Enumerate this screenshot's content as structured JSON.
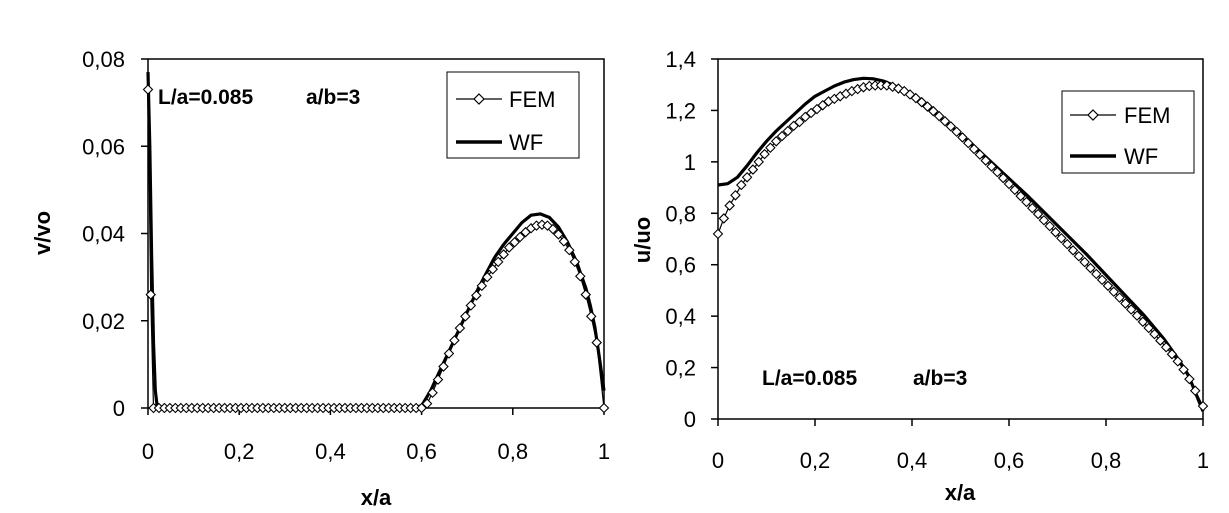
{
  "chart_data": [
    {
      "type": "line",
      "xlabel": "x/a",
      "ylabel": "v/vo",
      "xlim": [
        0,
        1
      ],
      "ylim": [
        0,
        0.08
      ],
      "xticks": [
        "0",
        "0,2",
        "0,4",
        "0,6",
        "0,8",
        "1"
      ],
      "yticks": [
        "0",
        "0,02",
        "0,04",
        "0,06",
        "0,08"
      ],
      "annotation": {
        "text_a": "L/a=0.085",
        "text_b": "a/b=3",
        "placement": "top-left"
      },
      "grid": false,
      "legend": "top-right",
      "series": [
        {
          "name": "FEM",
          "style": "line-diamond-markers",
          "x": [
            0.0,
            0.006,
            0.012,
            0.024,
            0.036,
            0.048,
            0.06,
            0.072,
            0.084,
            0.096,
            0.108,
            0.12,
            0.132,
            0.144,
            0.156,
            0.168,
            0.18,
            0.192,
            0.204,
            0.216,
            0.228,
            0.24,
            0.252,
            0.264,
            0.276,
            0.288,
            0.3,
            0.312,
            0.324,
            0.336,
            0.348,
            0.36,
            0.372,
            0.384,
            0.396,
            0.408,
            0.42,
            0.432,
            0.444,
            0.456,
            0.468,
            0.48,
            0.492,
            0.504,
            0.516,
            0.528,
            0.54,
            0.552,
            0.564,
            0.576,
            0.588,
            0.6,
            0.612,
            0.624,
            0.636,
            0.648,
            0.66,
            0.672,
            0.684,
            0.696,
            0.708,
            0.72,
            0.732,
            0.744,
            0.756,
            0.768,
            0.78,
            0.792,
            0.804,
            0.816,
            0.828,
            0.84,
            0.852,
            0.864,
            0.876,
            0.888,
            0.9,
            0.912,
            0.924,
            0.936,
            0.948,
            0.96,
            0.972,
            0.984,
            1.0
          ],
          "y": [
            0.073,
            0.026,
            0.0,
            0.0,
            0.0,
            0.0,
            0.0,
            0.0,
            0.0,
            0.0,
            0.0,
            0.0,
            0.0,
            0.0,
            0.0,
            0.0,
            0.0,
            0.0,
            0.0,
            0.0,
            0.0,
            0.0,
            0.0,
            0.0,
            0.0,
            0.0,
            0.0,
            0.0,
            0.0,
            0.0,
            0.0,
            0.0,
            0.0,
            0.0,
            0.0,
            0.0,
            0.0,
            0.0,
            0.0,
            0.0,
            0.0,
            0.0,
            0.0,
            0.0,
            0.0,
            0.0,
            0.0,
            0.0,
            0.0,
            0.0,
            0.0,
            0.0,
            0.001,
            0.0035,
            0.0065,
            0.0095,
            0.0125,
            0.0155,
            0.0183,
            0.021,
            0.0235,
            0.0258,
            0.028,
            0.03,
            0.0318,
            0.0335,
            0.0352,
            0.0368,
            0.038,
            0.0392,
            0.0403,
            0.0412,
            0.0418,
            0.042,
            0.0418,
            0.041,
            0.0398,
            0.0382,
            0.0362,
            0.0335,
            0.0302,
            0.026,
            0.021,
            0.015,
            0.0
          ]
        },
        {
          "name": "WF",
          "style": "thick-line",
          "x": [
            0.0,
            0.004,
            0.008,
            0.012,
            0.016,
            0.02,
            0.025,
            0.1,
            0.3,
            0.5,
            0.58,
            0.6,
            0.62,
            0.64,
            0.66,
            0.68,
            0.7,
            0.72,
            0.74,
            0.76,
            0.78,
            0.8,
            0.82,
            0.84,
            0.86,
            0.88,
            0.9,
            0.92,
            0.94,
            0.96,
            0.97,
            0.98,
            0.99,
            1.0
          ],
          "y": [
            0.077,
            0.06,
            0.035,
            0.015,
            0.004,
            0.0005,
            0.0,
            0.0,
            0.0,
            0.0,
            0.0,
            0.0005,
            0.004,
            0.0085,
            0.013,
            0.0175,
            0.022,
            0.0265,
            0.0305,
            0.0345,
            0.0375,
            0.04,
            0.0425,
            0.0442,
            0.0445,
            0.0437,
            0.0415,
            0.038,
            0.0335,
            0.0275,
            0.0235,
            0.0185,
            0.0115,
            0.004
          ]
        }
      ]
    },
    {
      "type": "line",
      "xlabel": "x/a",
      "ylabel": "u/uo",
      "xlim": [
        0,
        1
      ],
      "ylim": [
        0,
        1.4
      ],
      "xticks": [
        "0",
        "0,2",
        "0,4",
        "0,6",
        "0,8",
        "1"
      ],
      "yticks": [
        "0",
        "0,2",
        "0,4",
        "0,6",
        "0,8",
        "1",
        "1,2",
        "1,4"
      ],
      "annotation": {
        "text_a": "L/a=0.085",
        "text_b": "a/b=3",
        "placement": "bottom-left"
      },
      "grid": false,
      "legend": "top-right",
      "series": [
        {
          "name": "FEM",
          "style": "line-diamond-markers",
          "x": [
            0.0,
            0.012,
            0.024,
            0.036,
            0.048,
            0.06,
            0.072,
            0.084,
            0.096,
            0.108,
            0.12,
            0.132,
            0.144,
            0.156,
            0.168,
            0.18,
            0.192,
            0.204,
            0.216,
            0.228,
            0.24,
            0.252,
            0.264,
            0.276,
            0.288,
            0.3,
            0.312,
            0.324,
            0.336,
            0.348,
            0.36,
            0.372,
            0.384,
            0.396,
            0.408,
            0.42,
            0.432,
            0.444,
            0.456,
            0.468,
            0.48,
            0.492,
            0.504,
            0.516,
            0.528,
            0.54,
            0.552,
            0.564,
            0.576,
            0.588,
            0.6,
            0.612,
            0.624,
            0.636,
            0.648,
            0.66,
            0.672,
            0.684,
            0.696,
            0.708,
            0.72,
            0.732,
            0.744,
            0.756,
            0.768,
            0.78,
            0.792,
            0.804,
            0.816,
            0.828,
            0.84,
            0.852,
            0.864,
            0.876,
            0.888,
            0.9,
            0.912,
            0.924,
            0.936,
            0.948,
            0.96,
            0.972,
            0.984,
            1.0
          ],
          "y": [
            0.72,
            0.78,
            0.83,
            0.87,
            0.91,
            0.94,
            0.97,
            1.0,
            1.03,
            1.055,
            1.08,
            1.1,
            1.12,
            1.14,
            1.155,
            1.175,
            1.19,
            1.205,
            1.22,
            1.235,
            1.245,
            1.255,
            1.265,
            1.275,
            1.283,
            1.29,
            1.295,
            1.297,
            1.298,
            1.297,
            1.292,
            1.285,
            1.275,
            1.262,
            1.248,
            1.232,
            1.215,
            1.197,
            1.178,
            1.158,
            1.138,
            1.117,
            1.095,
            1.073,
            1.05,
            1.028,
            1.005,
            0.982,
            0.96,
            0.937,
            0.914,
            0.891,
            0.867,
            0.844,
            0.82,
            0.797,
            0.773,
            0.75,
            0.726,
            0.703,
            0.68,
            0.656,
            0.633,
            0.61,
            0.587,
            0.564,
            0.541,
            0.518,
            0.495,
            0.472,
            0.449,
            0.426,
            0.402,
            0.378,
            0.354,
            0.33,
            0.305,
            0.279,
            0.252,
            0.224,
            0.192,
            0.155,
            0.11,
            0.05
          ]
        },
        {
          "name": "WF",
          "style": "thick-line",
          "x": [
            0.0,
            0.02,
            0.04,
            0.06,
            0.08,
            0.1,
            0.12,
            0.14,
            0.16,
            0.18,
            0.2,
            0.22,
            0.24,
            0.26,
            0.28,
            0.3,
            0.32,
            0.34,
            0.36,
            0.38,
            0.4,
            0.44,
            0.48,
            0.52,
            0.56,
            0.6,
            0.64,
            0.68,
            0.72,
            0.76,
            0.8,
            0.84,
            0.88,
            0.92,
            0.95,
            0.97,
            0.985,
            1.0
          ],
          "y": [
            0.91,
            0.915,
            0.94,
            0.985,
            1.035,
            1.08,
            1.12,
            1.155,
            1.19,
            1.225,
            1.255,
            1.275,
            1.295,
            1.31,
            1.32,
            1.325,
            1.323,
            1.315,
            1.3,
            1.28,
            1.255,
            1.2,
            1.14,
            1.075,
            1.005,
            0.935,
            0.865,
            0.79,
            0.715,
            0.64,
            0.56,
            0.48,
            0.4,
            0.31,
            0.23,
            0.17,
            0.1,
            0.03
          ]
        }
      ]
    }
  ]
}
